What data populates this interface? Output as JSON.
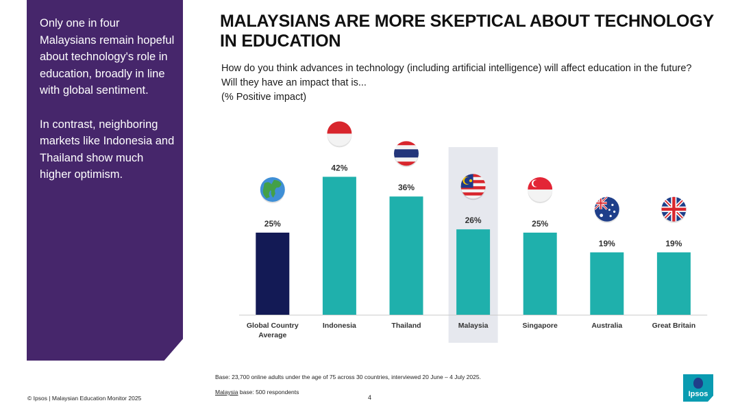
{
  "side_panel": {
    "text": "Only one in four Malaysians remain hopeful about technology's role in education, broadly in line with global sentiment.\n\nIn contrast, neighboring markets like Indonesia and Thailand show much higher optimism."
  },
  "header": {
    "title": "MALAYSIANS ARE MORE SKEPTICAL ABOUT TECHNOLOGY IN EDUCATION",
    "question": "How do you think advances in technology (including artificial intelligence) will affect education in the future? Will they have an impact that is...",
    "subtitle": "(% Positive impact)"
  },
  "chart_data": {
    "type": "bar",
    "title": "",
    "xlabel": "",
    "ylabel": "",
    "categories": [
      "Global Country Average",
      "Indonesia",
      "Thailand",
      "Malaysia",
      "Singapore",
      "Australia",
      "Great Britain"
    ],
    "values": [
      25,
      42,
      36,
      26,
      25,
      19,
      19
    ],
    "value_labels": [
      "25%",
      "42%",
      "36%",
      "26%",
      "25%",
      "19%",
      "19%"
    ],
    "highlight": "Malaysia",
    "grid": false,
    "icons": [
      "globe-icon",
      "indonesia-flag-icon",
      "thailand-flag-icon",
      "malaysia-flag-icon",
      "singapore-flag-icon",
      "australia-flag-icon",
      "great-britain-flag-icon"
    ],
    "colors": {
      "average": "#131a55",
      "countries": "#1fb0ac",
      "highlight_band": "#e6e8ee"
    }
  },
  "footer": {
    "base": "Base: 23,700 online adults under the age of 75 across 30 countries, interviewed 20 June – 4 July 2025.",
    "malaysia_label": "Malaysia",
    "malaysia_rest": " base: 500 respondents",
    "copyright": "© Ipsos | Malaysian Education Monitor 2025",
    "page_number": "4",
    "logo": "Ipsos"
  }
}
